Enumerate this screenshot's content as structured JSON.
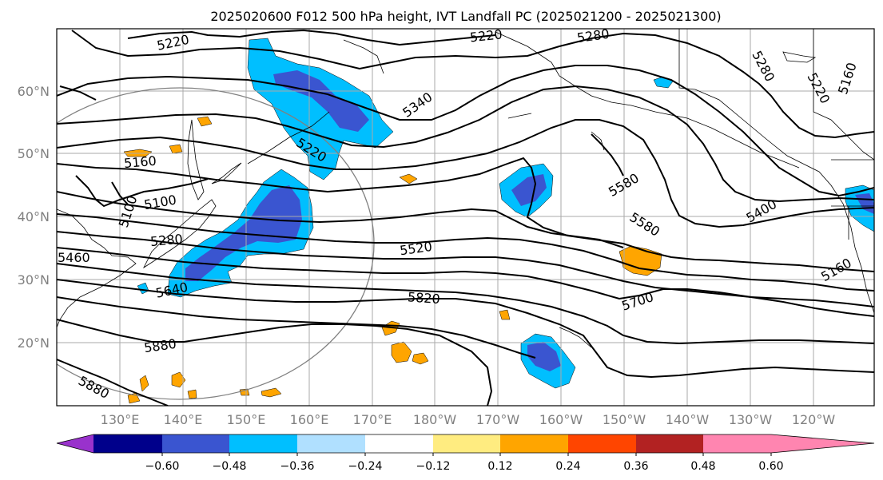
{
  "title": "2025020600 F012 500 hPa height, IVT Landfall PC (2025021200 - 2025021300)",
  "map": {
    "lat_labels": [
      "60°N",
      "50°N",
      "40°N",
      "30°N",
      "20°N"
    ],
    "lon_labels": [
      "130°E",
      "140°E",
      "150°E",
      "160°E",
      "170°E",
      "180°W",
      "170°W",
      "160°W",
      "150°W",
      "140°W",
      "130°W",
      "120°W"
    ],
    "contour_labels": [
      "5220",
      "5220",
      "5280",
      "5280",
      "5220",
      "5160",
      "5340",
      "5160",
      "5220",
      "5100",
      "5100",
      "5580",
      "5400",
      "5280",
      "5460",
      "5520",
      "5580",
      "5160",
      "5640",
      "5820",
      "5700",
      "5880",
      "5880"
    ],
    "fill_colors": {
      "blue_light": "#00bfff",
      "blue_mid": "#3a55d0",
      "orange": "#ffa500",
      "yellow": "#ffec80"
    }
  },
  "colorbar": {
    "colors": [
      "#9932cc",
      "#00008b",
      "#3a55d0",
      "#00bfff",
      "#b0e0ff",
      "#ffffff",
      "#ffec80",
      "#ffa500",
      "#ff4500",
      "#b22222",
      "#ff85b0"
    ],
    "tick_labels": [
      "−0.60",
      "−0.48",
      "−0.36",
      "−0.24",
      "−0.12",
      "0.12",
      "0.24",
      "0.36",
      "0.48",
      "0.60"
    ]
  }
}
